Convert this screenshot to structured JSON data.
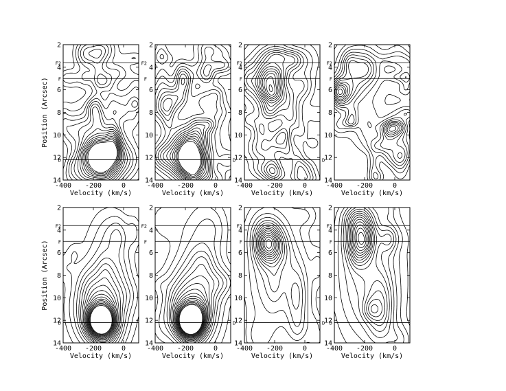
{
  "chart_data": [
    {
      "type": "contour",
      "panel": "row1-col1",
      "xlabel": "Velocity (km/s)",
      "ylabel": "Position (Arcsec)",
      "xlim": [
        -400,
        100
      ],
      "ylim": [
        14,
        2
      ],
      "xticks": [
        -400,
        -200,
        0
      ],
      "yticks": [
        2,
        4,
        6,
        8,
        10,
        12,
        14
      ],
      "hlines": [
        {
          "label": "F2",
          "y": 3.6
        },
        {
          "label": "F",
          "y": 5.0
        },
        {
          "label": "D",
          "y": 12.2
        }
      ],
      "peaks": [
        {
          "x": -150,
          "y": 12.2,
          "w": 70,
          "h": 1.1,
          "n": 14
        },
        {
          "x": -170,
          "y": 11.0,
          "w": 160,
          "h": 2.6,
          "n": 4
        }
      ],
      "noise": true
    },
    {
      "type": "contour",
      "panel": "row1-col2",
      "xlabel": "Velocity (km/s)",
      "ylabel": "",
      "xlim": [
        -400,
        100
      ],
      "ylim": [
        14,
        2
      ],
      "xticks": [
        -400,
        -200,
        0
      ],
      "yticks": [
        2,
        4,
        6,
        8,
        10,
        12,
        14
      ],
      "hlines": [
        {
          "label": "F2",
          "y": 3.6
        },
        {
          "label": "F",
          "y": 5.0
        },
        {
          "label": "D",
          "y": 12.2
        }
      ],
      "peaks": [
        {
          "x": -165,
          "y": 12.2,
          "w": 65,
          "h": 1.1,
          "n": 14
        },
        {
          "x": -180,
          "y": 11.0,
          "w": 160,
          "h": 2.6,
          "n": 4
        },
        {
          "x": -100,
          "y": 4.4,
          "w": 60,
          "h": 0.8,
          "n": 2
        }
      ],
      "noise": true
    },
    {
      "type": "contour",
      "panel": "row1-col3",
      "xlabel": "Velocity (km/s)",
      "ylabel": "",
      "xlim": [
        -400,
        100
      ],
      "ylim": [
        14,
        2
      ],
      "xticks": [
        -400,
        -200,
        0
      ],
      "yticks": [
        2,
        4,
        6,
        8,
        10,
        12,
        14
      ],
      "hlines": [
        {
          "label": "F2",
          "y": 3.6
        },
        {
          "label": "F",
          "y": 5.0
        },
        {
          "label": "D",
          "y": 12.2
        }
      ],
      "peaks": [
        {
          "x": -240,
          "y": 4.8,
          "w": 70,
          "h": 1.3,
          "n": 6
        },
        {
          "x": -230,
          "y": 6.0,
          "w": 150,
          "h": 3.0,
          "n": 3
        }
      ],
      "noise": true
    },
    {
      "type": "contour",
      "panel": "row1-col4",
      "xlabel": "Velocity (km/s)",
      "ylabel": "",
      "xlim": [
        -400,
        100
      ],
      "ylim": [
        14,
        2
      ],
      "xticks": [
        -400,
        -200,
        0
      ],
      "yticks": [
        2,
        4,
        6,
        8,
        10,
        12,
        14
      ],
      "hlines": [
        {
          "label": "F2",
          "y": 3.6
        },
        {
          "label": "F",
          "y": 5.0
        }
      ],
      "peaks": [
        {
          "x": -225,
          "y": 4.0,
          "w": 90,
          "h": 1.4,
          "n": 4
        },
        {
          "x": -200,
          "y": 6.0,
          "w": 180,
          "h": 3.2,
          "n": 2
        }
      ],
      "noise": true
    },
    {
      "type": "contour",
      "panel": "row2-col1",
      "xlabel": "Velocity (km/s)",
      "ylabel": "Position (Arcsec)",
      "xlim": [
        -400,
        100
      ],
      "ylim": [
        14,
        2
      ],
      "xticks": [
        -400,
        -200,
        0
      ],
      "yticks": [
        2,
        4,
        6,
        8,
        10,
        12,
        14
      ],
      "hlines": [
        {
          "label": "F2",
          "y": 3.6
        },
        {
          "label": "F",
          "y": 5.0
        },
        {
          "label": "D",
          "y": 12.2
        }
      ],
      "peaks": [
        {
          "x": -150,
          "y": 12.1,
          "w": 55,
          "h": 0.9,
          "n": 14
        },
        {
          "x": -155,
          "y": 11.0,
          "w": 110,
          "h": 2.0,
          "n": 5
        },
        {
          "x": -120,
          "y": 8.5,
          "w": 100,
          "h": 3.6,
          "n": 2
        }
      ],
      "noise": false
    },
    {
      "type": "contour",
      "panel": "row2-col2",
      "xlabel": "Velocity (km/s)",
      "ylabel": "",
      "xlim": [
        -400,
        100
      ],
      "ylim": [
        14,
        2
      ],
      "xticks": [
        -400,
        -200,
        0
      ],
      "yticks": [
        2,
        4,
        6,
        8,
        10,
        12,
        14
      ],
      "hlines": [
        {
          "label": "F2",
          "y": 3.6
        },
        {
          "label": "F",
          "y": 5.0
        },
        {
          "label": "D",
          "y": 12.2
        }
      ],
      "peaks": [
        {
          "x": -165,
          "y": 12.1,
          "w": 55,
          "h": 0.9,
          "n": 16
        },
        {
          "x": -170,
          "y": 10.8,
          "w": 110,
          "h": 2.2,
          "n": 5
        },
        {
          "x": -110,
          "y": 7.5,
          "w": 100,
          "h": 4.3,
          "n": 2
        }
      ],
      "noise": false
    },
    {
      "type": "contour",
      "panel": "row2-col3",
      "xlabel": "Velocity (km/s)",
      "ylabel": "",
      "xlim": [
        -400,
        100
      ],
      "ylim": [
        14,
        2
      ],
      "xticks": [
        -400,
        -200,
        0
      ],
      "yticks": [
        2,
        4,
        6,
        8,
        10,
        12,
        14
      ],
      "hlines": [
        {
          "label": "F2",
          "y": 3.6
        },
        {
          "label": "F",
          "y": 5.0
        },
        {
          "label": "D",
          "y": 12.2
        }
      ],
      "peaks": [
        {
          "x": -240,
          "y": 5.2,
          "w": 55,
          "h": 1.1,
          "n": 7
        },
        {
          "x": -220,
          "y": 7.5,
          "w": 130,
          "h": 4.5,
          "n": 3
        },
        {
          "x": -40,
          "y": 10.0,
          "w": 55,
          "h": 2.5,
          "n": 2
        }
      ],
      "noise": false
    },
    {
      "type": "contour",
      "panel": "row2-col4",
      "xlabel": "Velocity (km/s)",
      "ylabel": "",
      "xlim": [
        -400,
        100
      ],
      "ylim": [
        14,
        2
      ],
      "xticks": [
        -400,
        -200,
        0
      ],
      "yticks": [
        2,
        4,
        6,
        8,
        10,
        12,
        14
      ],
      "hlines": [
        {
          "label": "F2",
          "y": 3.6
        },
        {
          "label": "F",
          "y": 5.0
        },
        {
          "label": "D",
          "y": 12.2
        }
      ],
      "peaks": [
        {
          "x": -230,
          "y": 4.4,
          "w": 60,
          "h": 1.5,
          "n": 7
        },
        {
          "x": -200,
          "y": 8.0,
          "w": 150,
          "h": 4.8,
          "n": 3
        },
        {
          "x": -90,
          "y": 11.0,
          "w": 60,
          "h": 2.2,
          "n": 3
        }
      ],
      "noise": false
    }
  ]
}
